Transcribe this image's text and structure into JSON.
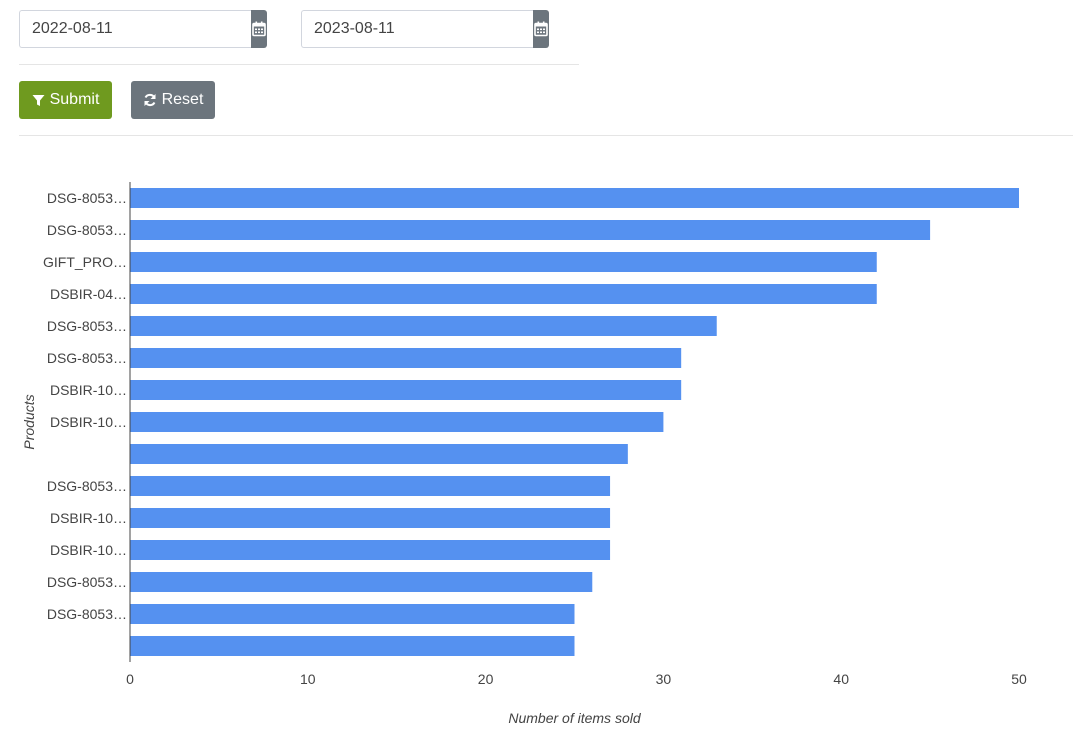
{
  "filters": {
    "start_date": "2022-08-11",
    "end_date": "2023-08-11",
    "calendar_icon": "calendar-icon"
  },
  "actions": {
    "submit_label": "Submit",
    "submit_icon": "filter-icon",
    "submit_color": "#6f9a1f",
    "reset_label": "Reset",
    "reset_icon": "refresh-icon",
    "reset_color": "#6c757d"
  },
  "chart_data": {
    "type": "bar",
    "orientation": "horizontal",
    "categories": [
      "DSG-8053…",
      "DSG-8053…",
      "GIFT_PRO…",
      "DSBIR-04…",
      "DSG-8053…",
      "DSG-8053…",
      "DSBIR-10…",
      "DSBIR-10…",
      "",
      "DSG-8053…",
      "DSBIR-10…",
      "DSBIR-10…",
      "DSG-8053…",
      "DSG-8053…",
      ""
    ],
    "values": [
      50,
      45,
      42,
      42,
      33,
      31,
      31,
      30,
      28,
      27,
      27,
      27,
      26,
      25,
      25
    ],
    "xlabel": "Number of items sold",
    "ylabel": "Products",
    "xlim": [
      0,
      50
    ],
    "xticks": [
      0,
      10,
      20,
      30,
      40,
      50
    ],
    "bar_color": "#5591f0",
    "grid": false
  }
}
